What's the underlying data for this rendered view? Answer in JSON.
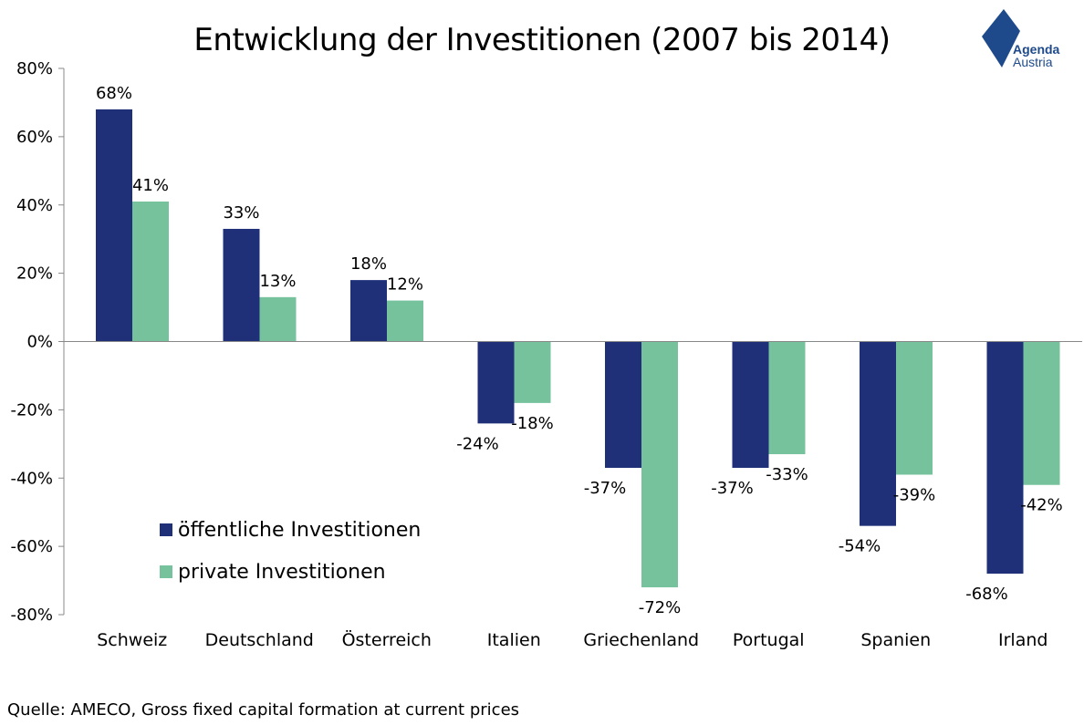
{
  "title": "Entwicklung der Investitionen (2007 bis 2014)",
  "logo": {
    "line1": "Agenda",
    "line2": "Austria"
  },
  "source": "Quelle: AMECO, Gross fixed capital formation at current prices",
  "colors": {
    "series1": "#1f3079",
    "series2": "#76c29d",
    "axis": "#888888"
  },
  "chart_data": {
    "type": "bar",
    "title": "Entwicklung der Investitionen (2007 bis 2014)",
    "categories": [
      "Schweiz",
      "Deutschland",
      "Österreich",
      "Italien",
      "Griechenland",
      "Portugal",
      "Spanien",
      "Irland"
    ],
    "series": [
      {
        "name": "öffentliche Investitionen",
        "values": [
          68,
          33,
          18,
          -24,
          -37,
          -37,
          -54,
          -68
        ],
        "labels": [
          "68%",
          "33%",
          "18%",
          "-24%",
          "-37%",
          "-37%",
          "-54%",
          "-68%"
        ]
      },
      {
        "name": "private Investitionen",
        "values": [
          41,
          13,
          12,
          -18,
          -72,
          -33,
          -39,
          -42
        ],
        "labels": [
          "41%",
          "13%",
          "12%",
          "-18%",
          "-72%",
          "-33%",
          "-39%",
          "-42%"
        ]
      }
    ],
    "ylim": [
      -80,
      80
    ],
    "yticks": [
      80,
      60,
      40,
      20,
      0,
      -20,
      -40,
      -60,
      -80
    ],
    "ytick_labels": [
      "80%",
      "60%",
      "40%",
      "20%",
      "0%",
      "-20%",
      "-40%",
      "-60%",
      "-80%"
    ],
    "grid": false,
    "legend": "bottom-left"
  }
}
